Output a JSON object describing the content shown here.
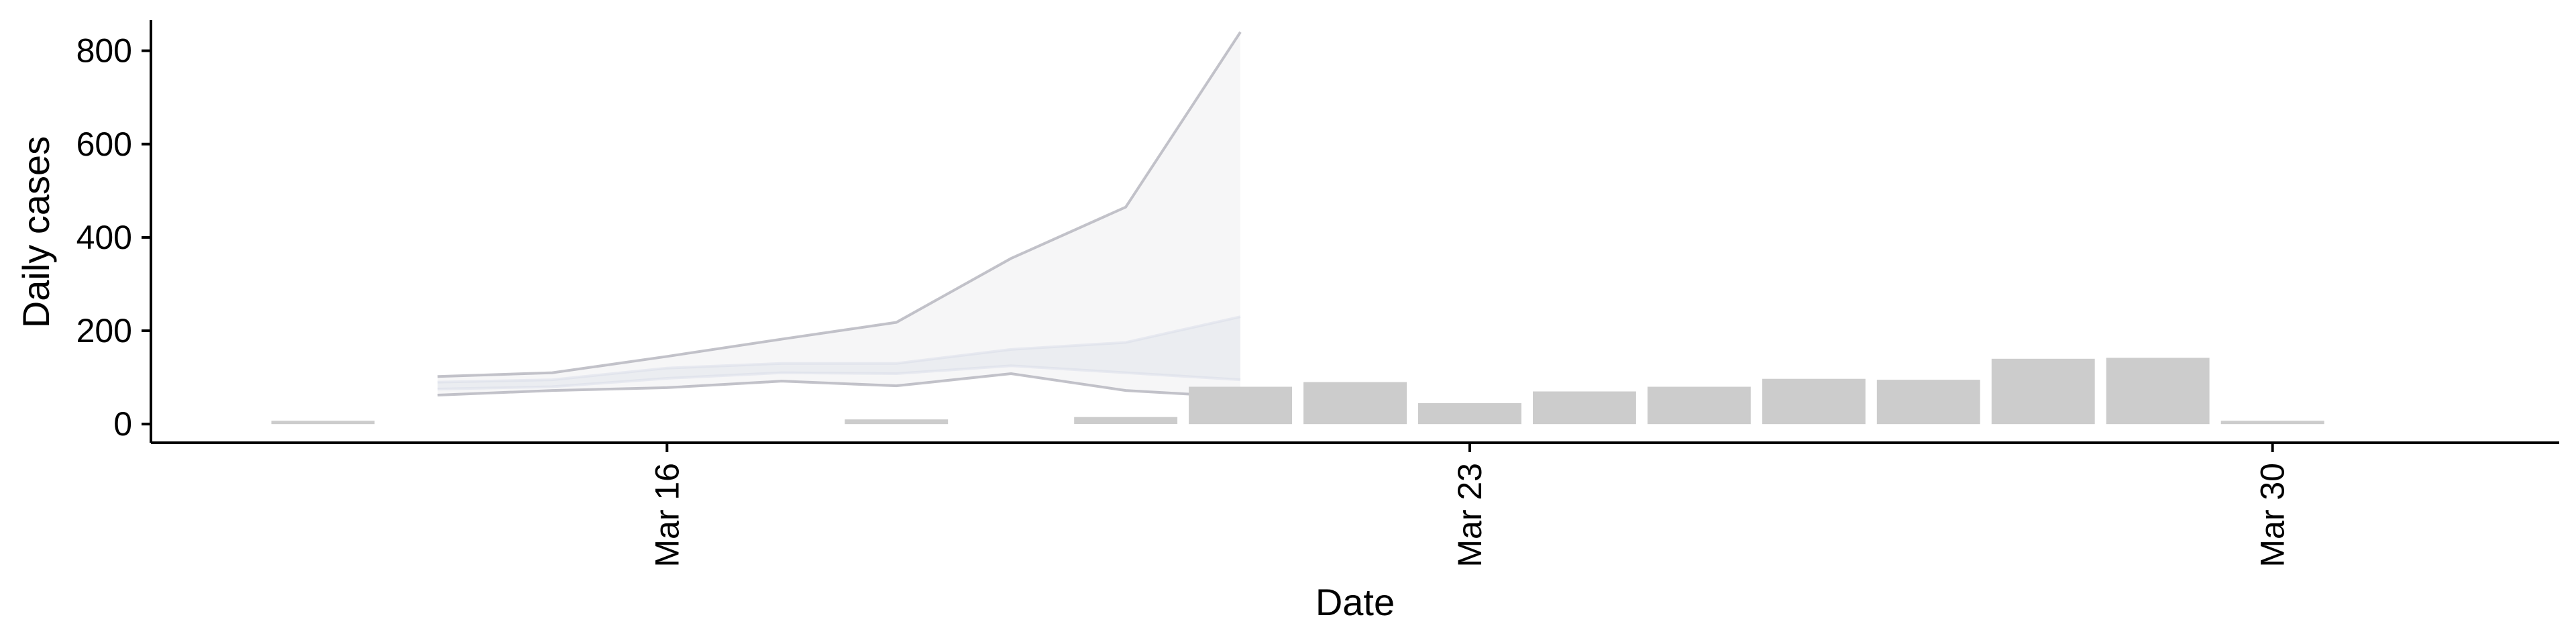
{
  "chart_data": {
    "type": "bar",
    "title": "",
    "xlabel": "Date",
    "ylabel": "Daily cases",
    "x_type": "date",
    "xlim": [
      "2020-03-11T12:00",
      "2020-04-01T12:00"
    ],
    "ylim": [
      -40,
      880
    ],
    "x_ticks": [
      {
        "date": "2020-03-16",
        "label": "Mar 16"
      },
      {
        "date": "2020-03-23",
        "label": "Mar 23"
      },
      {
        "date": "2020-03-30",
        "label": "Mar 30"
      }
    ],
    "y_ticks": [
      0,
      200,
      400,
      600,
      800
    ],
    "grid": false,
    "bars": {
      "color": "#cccccc",
      "dates": [
        "2020-03-13",
        "2020-03-18",
        "2020-03-20",
        "2020-03-21",
        "2020-03-22",
        "2020-03-23",
        "2020-03-24",
        "2020-03-25",
        "2020-03-26",
        "2020-03-27",
        "2020-03-28",
        "2020-03-29",
        "2020-03-30"
      ],
      "values": [
        5,
        10,
        15,
        80,
        90,
        45,
        70,
        80,
        97,
        95,
        140,
        142,
        0
      ],
      "values_note": ""
    },
    "series": [
      {
        "type": "ribbon",
        "color": "#a9a9b3",
        "dates": [
          "2020-03-14",
          "2020-03-15",
          "2020-03-16",
          "2020-03-17",
          "2020-03-18",
          "2020-03-19",
          "2020-03-20",
          "2020-03-21"
        ],
        "lower": [
          62,
          72,
          78,
          92,
          82,
          108,
          72,
          58
        ],
        "upper": [
          102,
          110,
          145,
          182,
          218,
          355,
          465,
          840
        ]
      },
      {
        "type": "ribbon",
        "color": "#d2d6e6",
        "dates": [
          "2020-03-14",
          "2020-03-15",
          "2020-03-16",
          "2020-03-17",
          "2020-03-18",
          "2020-03-19",
          "2020-03-20",
          "2020-03-21"
        ],
        "lower": [
          75,
          80,
          98,
          110,
          108,
          125,
          110,
          95
        ],
        "upper": [
          90,
          95,
          120,
          130,
          130,
          160,
          175,
          230
        ]
      }
    ]
  }
}
